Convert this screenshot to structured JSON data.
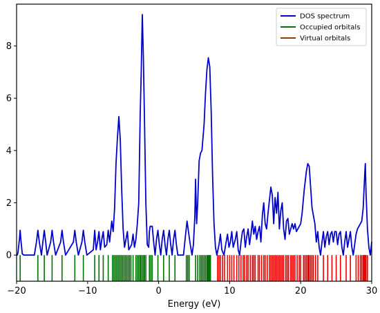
{
  "chart_data": {
    "type": "line",
    "xlabel": "Energy (eV)",
    "ylabel": "",
    "xlim": [
      -20,
      30
    ],
    "ylim": [
      -1,
      9.6
    ],
    "xticks": [
      -20,
      -10,
      0,
      10,
      20,
      30
    ],
    "yticks": [
      0,
      2,
      4,
      6,
      8
    ],
    "legend_position": "top-right",
    "colors": {
      "dos": "#0000cc",
      "occupied": "#007000",
      "virtual": "#ee0000",
      "virtual_legend": "#8b3a00",
      "axis": "#000000"
    },
    "series": [
      {
        "name": "DOS spectrum",
        "kind": "line",
        "points": [
          [
            -20.0,
            0.0
          ],
          [
            -19.9,
            0.0
          ],
          [
            -19.8,
            0.1
          ],
          [
            -19.6,
            0.6
          ],
          [
            -19.5,
            0.95
          ],
          [
            -19.4,
            0.6
          ],
          [
            -19.2,
            0.05
          ],
          [
            -19.0,
            0.0
          ],
          [
            -17.5,
            0.0
          ],
          [
            -17.2,
            0.5
          ],
          [
            -17.0,
            0.95
          ],
          [
            -16.8,
            0.5
          ],
          [
            -16.5,
            0.0
          ],
          [
            -16.3,
            0.5
          ],
          [
            -16.1,
            0.95
          ],
          [
            -15.9,
            0.5
          ],
          [
            -15.7,
            0.0
          ],
          [
            -15.2,
            0.5
          ],
          [
            -15.0,
            0.95
          ],
          [
            -14.8,
            0.5
          ],
          [
            -14.5,
            0.0
          ],
          [
            -13.8,
            0.5
          ],
          [
            -13.6,
            0.95
          ],
          [
            -13.4,
            0.5
          ],
          [
            -13.1,
            0.0
          ],
          [
            -12.0,
            0.5
          ],
          [
            -11.8,
            0.95
          ],
          [
            -11.6,
            0.5
          ],
          [
            -11.3,
            0.0
          ],
          [
            -10.8,
            0.5
          ],
          [
            -10.6,
            0.95
          ],
          [
            -10.4,
            0.5
          ],
          [
            -10.1,
            0.0
          ],
          [
            -9.2,
            0.2
          ],
          [
            -9.0,
            0.95
          ],
          [
            -8.8,
            0.2
          ],
          [
            -8.6,
            0.5
          ],
          [
            -8.4,
            0.9
          ],
          [
            -8.2,
            0.2
          ],
          [
            -8.0,
            0.6
          ],
          [
            -7.8,
            0.9
          ],
          [
            -7.6,
            0.3
          ],
          [
            -7.3,
            0.4
          ],
          [
            -7.1,
            0.95
          ],
          [
            -6.9,
            0.5
          ],
          [
            -6.6,
            1.3
          ],
          [
            -6.4,
            0.9
          ],
          [
            -6.2,
            1.8
          ],
          [
            -6.0,
            3.5
          ],
          [
            -5.8,
            4.5
          ],
          [
            -5.6,
            5.3
          ],
          [
            -5.4,
            4.4
          ],
          [
            -5.2,
            2.5
          ],
          [
            -5.0,
            1.0
          ],
          [
            -4.8,
            0.3
          ],
          [
            -4.6,
            0.6
          ],
          [
            -4.4,
            0.9
          ],
          [
            -4.2,
            0.2
          ],
          [
            -3.8,
            0.4
          ],
          [
            -3.6,
            0.8
          ],
          [
            -3.4,
            0.3
          ],
          [
            -3.2,
            0.6
          ],
          [
            -3.0,
            1.2
          ],
          [
            -2.8,
            2.0
          ],
          [
            -2.6,
            5.3
          ],
          [
            -2.45,
            7.0
          ],
          [
            -2.3,
            9.2
          ],
          [
            -2.15,
            7.6
          ],
          [
            -2.0,
            5.3
          ],
          [
            -1.8,
            2.0
          ],
          [
            -1.6,
            0.4
          ],
          [
            -1.4,
            0.3
          ],
          [
            -1.3,
            0.9
          ],
          [
            -1.2,
            1.1
          ],
          [
            -0.9,
            1.1
          ],
          [
            -0.7,
            0.5
          ],
          [
            -0.5,
            0.0
          ],
          [
            -0.3,
            0.6
          ],
          [
            -0.1,
            0.95
          ],
          [
            0.1,
            0.4
          ],
          [
            0.3,
            0.0
          ],
          [
            0.5,
            0.6
          ],
          [
            0.7,
            0.95
          ],
          [
            0.9,
            0.4
          ],
          [
            1.1,
            0.0
          ],
          [
            1.3,
            0.6
          ],
          [
            1.5,
            0.95
          ],
          [
            1.7,
            0.4
          ],
          [
            1.9,
            0.0
          ],
          [
            2.1,
            0.6
          ],
          [
            2.3,
            0.95
          ],
          [
            2.5,
            0.4
          ],
          [
            2.7,
            0.0
          ],
          [
            3.5,
            0.0
          ],
          [
            3.8,
            0.8
          ],
          [
            4.0,
            1.3
          ],
          [
            4.2,
            0.9
          ],
          [
            4.4,
            0.5
          ],
          [
            4.7,
            0.0
          ],
          [
            4.9,
            0.4
          ],
          [
            5.1,
            1.5
          ],
          [
            5.2,
            2.9
          ],
          [
            5.35,
            1.2
          ],
          [
            5.5,
            2.0
          ],
          [
            5.7,
            3.6
          ],
          [
            5.9,
            3.9
          ],
          [
            6.1,
            4.0
          ],
          [
            6.4,
            5.0
          ],
          [
            6.6,
            6.2
          ],
          [
            6.8,
            7.1
          ],
          [
            7.0,
            7.55
          ],
          [
            7.2,
            7.2
          ],
          [
            7.4,
            5.5
          ],
          [
            7.6,
            3.0
          ],
          [
            7.8,
            1.2
          ],
          [
            8.0,
            0.3
          ],
          [
            8.2,
            0.0
          ],
          [
            8.5,
            0.4
          ],
          [
            8.7,
            0.8
          ],
          [
            8.9,
            0.2
          ],
          [
            9.2,
            0.0
          ],
          [
            9.5,
            0.5
          ],
          [
            9.7,
            0.8
          ],
          [
            9.9,
            0.3
          ],
          [
            10.1,
            0.5
          ],
          [
            10.3,
            0.9
          ],
          [
            10.5,
            0.3
          ],
          [
            10.8,
            0.6
          ],
          [
            11.0,
            0.9
          ],
          [
            11.2,
            0.2
          ],
          [
            11.4,
            0.0
          ],
          [
            11.6,
            0.5
          ],
          [
            11.8,
            0.9
          ],
          [
            12.0,
            1.0
          ],
          [
            12.2,
            0.3
          ],
          [
            12.4,
            0.7
          ],
          [
            12.6,
            1.0
          ],
          [
            12.8,
            0.4
          ],
          [
            13.0,
            0.8
          ],
          [
            13.2,
            1.3
          ],
          [
            13.4,
            0.8
          ],
          [
            13.6,
            1.1
          ],
          [
            13.8,
            0.6
          ],
          [
            14.0,
            0.9
          ],
          [
            14.2,
            1.1
          ],
          [
            14.4,
            0.5
          ],
          [
            14.6,
            1.5
          ],
          [
            14.8,
            2.0
          ],
          [
            15.0,
            1.2
          ],
          [
            15.2,
            1.0
          ],
          [
            15.4,
            1.6
          ],
          [
            15.6,
            2.1
          ],
          [
            15.8,
            2.6
          ],
          [
            16.0,
            2.3
          ],
          [
            16.2,
            1.2
          ],
          [
            16.4,
            2.2
          ],
          [
            16.6,
            1.6
          ],
          [
            16.8,
            2.4
          ],
          [
            17.0,
            1.0
          ],
          [
            17.2,
            1.7
          ],
          [
            17.4,
            2.0
          ],
          [
            17.6,
            1.0
          ],
          [
            17.8,
            0.6
          ],
          [
            18.0,
            1.3
          ],
          [
            18.2,
            1.4
          ],
          [
            18.4,
            0.8
          ],
          [
            18.6,
            1.0
          ],
          [
            18.8,
            1.2
          ],
          [
            19.0,
            1.0
          ],
          [
            19.2,
            1.2
          ],
          [
            19.4,
            0.9
          ],
          [
            19.6,
            1.0
          ],
          [
            19.8,
            1.1
          ],
          [
            20.0,
            1.2
          ],
          [
            20.2,
            1.6
          ],
          [
            20.5,
            2.5
          ],
          [
            20.8,
            3.2
          ],
          [
            21.0,
            3.5
          ],
          [
            21.2,
            3.4
          ],
          [
            21.4,
            2.6
          ],
          [
            21.6,
            1.8
          ],
          [
            21.8,
            1.5
          ],
          [
            22.0,
            1.2
          ],
          [
            22.2,
            0.5
          ],
          [
            22.4,
            0.9
          ],
          [
            22.6,
            0.3
          ],
          [
            22.8,
            0.0
          ],
          [
            23.0,
            0.5
          ],
          [
            23.2,
            0.9
          ],
          [
            23.4,
            0.3
          ],
          [
            23.6,
            0.7
          ],
          [
            23.8,
            0.9
          ],
          [
            24.0,
            0.4
          ],
          [
            24.2,
            0.8
          ],
          [
            24.4,
            0.9
          ],
          [
            24.6,
            0.5
          ],
          [
            24.8,
            0.9
          ],
          [
            25.0,
            0.9
          ],
          [
            25.2,
            0.4
          ],
          [
            25.4,
            0.8
          ],
          [
            25.6,
            0.9
          ],
          [
            25.8,
            0.3
          ],
          [
            26.0,
            0.0
          ],
          [
            26.2,
            0.5
          ],
          [
            26.4,
            0.9
          ],
          [
            26.6,
            0.3
          ],
          [
            26.8,
            0.6
          ],
          [
            27.0,
            0.9
          ],
          [
            27.2,
            0.3
          ],
          [
            27.4,
            0.0
          ],
          [
            27.6,
            0.4
          ],
          [
            27.8,
            0.8
          ],
          [
            28.0,
            1.0
          ],
          [
            28.2,
            1.1
          ],
          [
            28.4,
            1.2
          ],
          [
            28.6,
            1.3
          ],
          [
            28.8,
            1.8
          ],
          [
            29.0,
            3.0
          ],
          [
            29.1,
            3.5
          ],
          [
            29.2,
            2.4
          ],
          [
            29.4,
            1.0
          ],
          [
            29.6,
            0.3
          ],
          [
            29.8,
            0.0
          ],
          [
            30.0,
            0.5
          ]
        ]
      },
      {
        "name": "Occupied orbitals",
        "kind": "stick",
        "x": [
          -19.5,
          -17.0,
          -16.1,
          -15.0,
          -13.6,
          -11.8,
          -10.6,
          -9.0,
          -8.4,
          -7.8,
          -7.1,
          -6.5,
          -6.3,
          -6.1,
          -5.9,
          -5.7,
          -5.5,
          -5.3,
          -5.1,
          -4.9,
          -4.7,
          -4.5,
          -4.3,
          -4.1,
          -3.9,
          -3.6,
          -3.2,
          -3.0,
          -2.8,
          -2.6,
          -2.5,
          -2.3,
          -2.1,
          -2.0,
          -1.8,
          -1.3,
          -1.1,
          -0.9,
          -0.1,
          0.7,
          1.5,
          2.3,
          3.9,
          4.1,
          4.3,
          5.2,
          5.5,
          5.8,
          6.0,
          6.2,
          6.4,
          6.6,
          6.8,
          6.9,
          7.0,
          7.1,
          7.2,
          7.3
        ]
      },
      {
        "name": "Virtual orbitals",
        "kind": "stick",
        "x": [
          8.3,
          8.5,
          8.7,
          9.0,
          9.3,
          9.7,
          10.0,
          10.3,
          10.6,
          11.0,
          11.3,
          11.6,
          11.9,
          12.1,
          12.4,
          12.6,
          12.9,
          13.2,
          13.4,
          13.6,
          14.0,
          14.2,
          14.5,
          14.8,
          15.0,
          15.3,
          15.6,
          15.8,
          16.0,
          16.2,
          16.4,
          16.6,
          16.8,
          17.0,
          17.2,
          17.4,
          17.6,
          17.9,
          18.1,
          18.3,
          18.6,
          18.8,
          19.0,
          19.2,
          19.5,
          19.8,
          20.0,
          20.4,
          20.6,
          20.8,
          21.0,
          21.1,
          21.2,
          21.4,
          21.6,
          21.8,
          22.1,
          22.4,
          23.2,
          23.8,
          24.4,
          25.0,
          25.6,
          26.4,
          27.0,
          27.8,
          28.1,
          28.4,
          28.6,
          28.8,
          28.9,
          29.0,
          29.1,
          29.2,
          29.4
        ]
      }
    ]
  }
}
